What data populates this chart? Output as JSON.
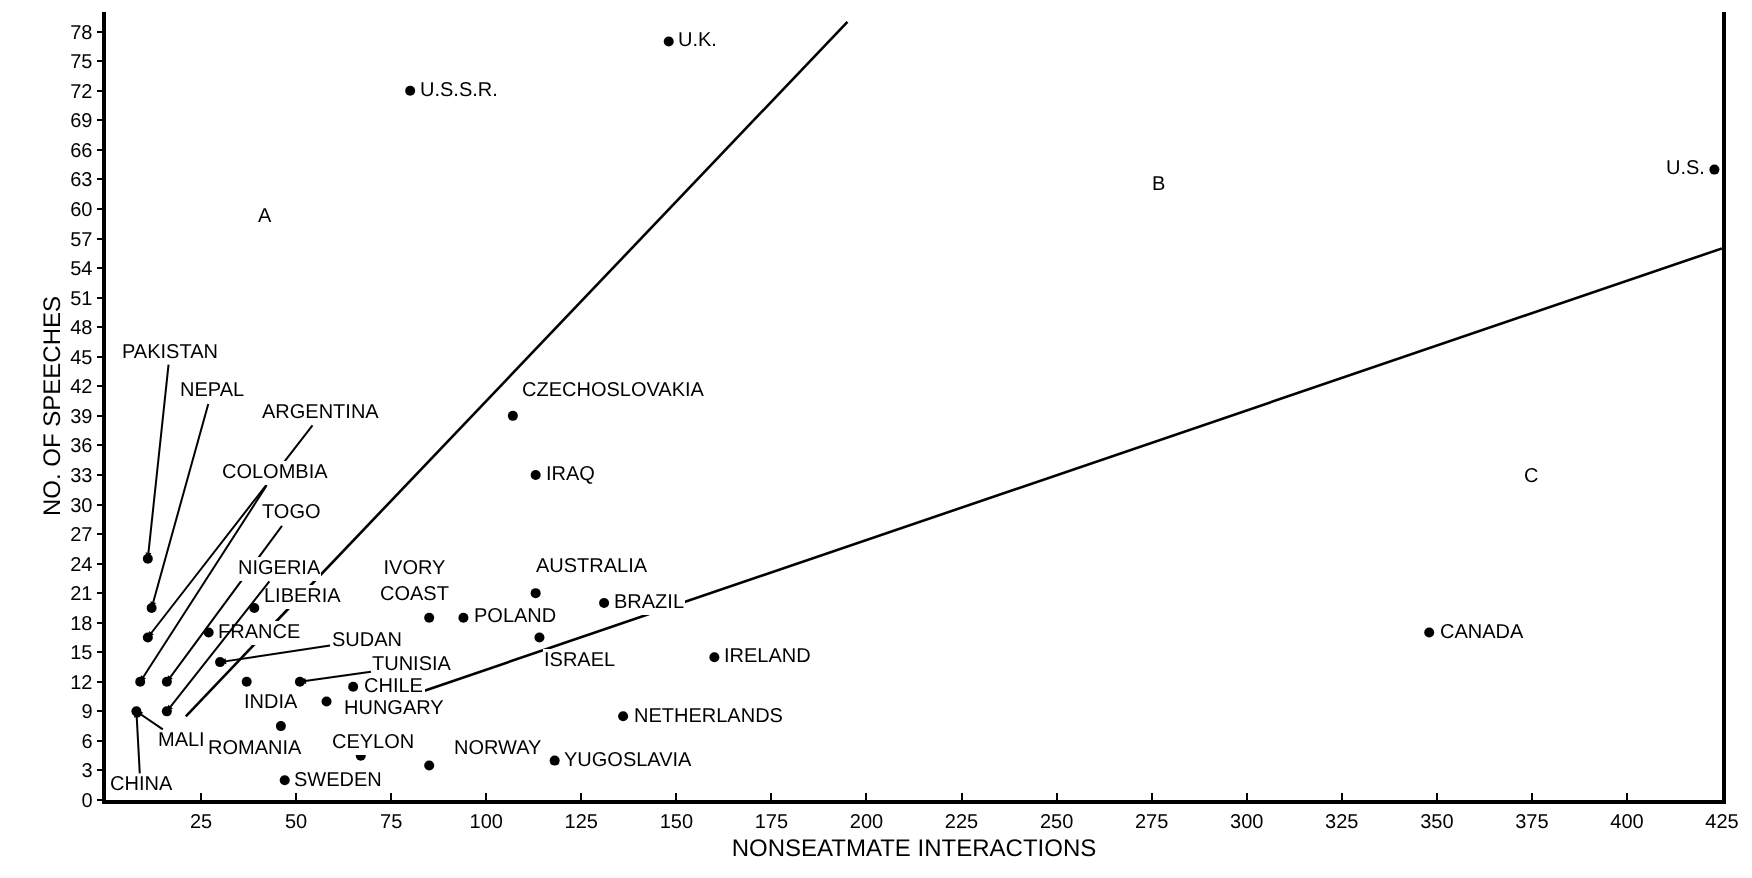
{
  "chart_data": {
    "type": "scatter",
    "xlabel": "NONSEATMATE INTERACTIONS",
    "ylabel": "NO. OF SPEECHES",
    "xlim": [
      0,
      425
    ],
    "xticks": [
      25,
      50,
      75,
      100,
      125,
      150,
      175,
      200,
      225,
      250,
      275,
      300,
      325,
      350,
      375,
      400,
      425
    ],
    "ylim": [
      0,
      80
    ],
    "yticks": [
      0,
      3,
      6,
      9,
      12,
      15,
      18,
      21,
      24,
      27,
      30,
      33,
      36,
      39,
      42,
      45,
      48,
      51,
      54,
      57,
      60,
      63,
      66,
      69,
      72,
      75,
      78
    ],
    "series": [
      {
        "type": "scatter",
        "color": "#000000",
        "marker": "circle",
        "x": [
          80,
          148,
          423,
          348,
          107,
          113,
          113,
          131,
          94,
          85,
          114,
          160,
          136,
          118,
          85,
          67,
          47,
          58,
          46,
          65,
          51,
          37,
          30,
          39,
          27,
          11,
          12,
          11,
          9,
          16,
          16,
          8
        ],
        "values": [
          72,
          77,
          64,
          17,
          39,
          33,
          21,
          20,
          18.5,
          18.5,
          16.5,
          14.5,
          8.5,
          4,
          3.5,
          4.5,
          2,
          10,
          7.5,
          11.5,
          12,
          12,
          14,
          19.5,
          17,
          24.5,
          19.5,
          16.5,
          12,
          12,
          9,
          9
        ]
      },
      {
        "type": "line",
        "color": "#000000",
        "x": [
          21,
          195
        ],
        "values": [
          8.5,
          79
        ]
      },
      {
        "type": "line",
        "color": "#000000",
        "x": [
          83,
          425
        ],
        "values": [
          11,
          56
        ]
      }
    ],
    "annotations": [
      {
        "text": "U.S.S.R.",
        "x": 80,
        "y": 72
      },
      {
        "text": "U.K.",
        "x": 148,
        "y": 77
      },
      {
        "text": "U.S.",
        "x": 423,
        "y": 64
      },
      {
        "text": "CANADA",
        "x": 348,
        "y": 17
      },
      {
        "text": "CZECHOSLOVAKIA",
        "x": 107,
        "y": 39
      },
      {
        "text": "IRAQ",
        "x": 113,
        "y": 33
      },
      {
        "text": "AUSTRALIA",
        "x": 113,
        "y": 21
      },
      {
        "text": "BRAZIL",
        "x": 131,
        "y": 20
      },
      {
        "text": "POLAND",
        "x": 94,
        "y": 18.5
      },
      {
        "text": "IVORY\nCOAST",
        "x": 85,
        "y": 18.5
      },
      {
        "text": "ISRAEL",
        "x": 114,
        "y": 16.5
      },
      {
        "text": "IRELAND",
        "x": 160,
        "y": 14.5
      },
      {
        "text": "NETHERLANDS",
        "x": 136,
        "y": 8.5
      },
      {
        "text": "YUGOSLAVIA",
        "x": 118,
        "y": 4
      },
      {
        "text": "NORWAY",
        "x": 85,
        "y": 3.5
      },
      {
        "text": "CEYLON",
        "x": 67,
        "y": 4.5
      },
      {
        "text": "SWEDEN",
        "x": 47,
        "y": 2
      },
      {
        "text": "HUNGARY",
        "x": 58,
        "y": 10
      },
      {
        "text": "ROMANIA",
        "x": 46,
        "y": 7.5
      },
      {
        "text": "CHILE",
        "x": 65,
        "y": 11.5
      },
      {
        "text": "TUNISIA",
        "x": 51,
        "y": 12
      },
      {
        "text": "INDIA",
        "x": 37,
        "y": 12
      },
      {
        "text": "SUDAN",
        "x": 30,
        "y": 14
      },
      {
        "text": "LIBERIA",
        "x": 39,
        "y": 19.5
      },
      {
        "text": "FRANCE",
        "x": 27,
        "y": 17
      },
      {
        "text": "PAKISTAN",
        "x": 11,
        "y": 24.5
      },
      {
        "text": "NEPAL",
        "x": 12,
        "y": 19.5
      },
      {
        "text": "ARGENTINA",
        "x": 11,
        "y": 16.5
      },
      {
        "text": "COLOMBIA",
        "x": 9,
        "y": 12
      },
      {
        "text": "TOGO",
        "x": 16,
        "y": 12
      },
      {
        "text": "NIGERIA",
        "x": 16,
        "y": 9
      },
      {
        "text": "MALI",
        "x": 8,
        "y": 9
      },
      {
        "text": "CHINA",
        "x": 8,
        "y": 9
      },
      "A",
      "B",
      "C"
    ]
  }
}
